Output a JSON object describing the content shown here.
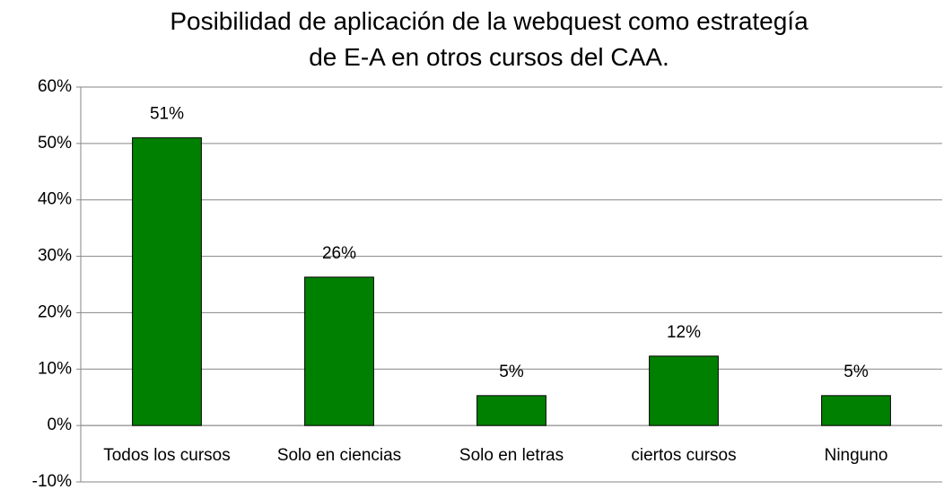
{
  "chart_data": {
    "type": "bar",
    "title": "Posibilidad de aplicación de la webquest como estrategía\nde E-A en otros cursos del CAA.",
    "categories": [
      "Todos los cursos",
      "Solo en ciencias",
      "Solo en letras",
      "ciertos cursos",
      "Ninguno"
    ],
    "values": [
      51,
      26.3,
      5.3,
      12.3,
      5.3
    ],
    "value_labels": [
      "51%",
      "26%",
      "5%",
      "12%",
      "5%"
    ],
    "color": "#008000",
    "ylim": [
      -10,
      60
    ],
    "yticks": [
      {
        "value": -10,
        "label": "-10%"
      },
      {
        "value": 0,
        "label": "0%"
      },
      {
        "value": 10,
        "label": "10%"
      },
      {
        "value": 20,
        "label": "20%"
      },
      {
        "value": 30,
        "label": "30%"
      },
      {
        "value": 40,
        "label": "40%"
      },
      {
        "value": 50,
        "label": "50%"
      },
      {
        "value": 60,
        "label": "60%"
      }
    ],
    "grid": true
  }
}
